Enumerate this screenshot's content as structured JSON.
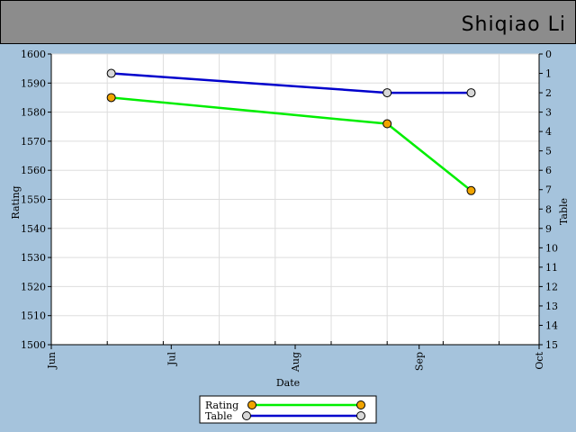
{
  "header": {
    "name": "Shiqiao Li"
  },
  "colors": {
    "rating": "#00ee00",
    "table": "#0000cc",
    "rating_marker": "#f0a400",
    "table_marker": "#d8d8d8",
    "header_bg": "#8c8c8c",
    "page_bg": "#a5c3dc"
  },
  "chart_data": {
    "type": "line",
    "xlabel": "Date",
    "ylabel": "Rating",
    "y2label": "Table",
    "x_ticks": [
      "Jun",
      "Jul",
      "Aug",
      "Sep",
      "Oct"
    ],
    "xlim": [
      "2010-06-01",
      "2010-10-01"
    ],
    "ylim": [
      1500,
      1600
    ],
    "y_ticks": [
      1500,
      1510,
      1520,
      1530,
      1540,
      1550,
      1560,
      1570,
      1580,
      1590,
      1600
    ],
    "y2lim": [
      15,
      0
    ],
    "y2_ticks": [
      0,
      1,
      2,
      3,
      4,
      5,
      6,
      7,
      8,
      9,
      10,
      11,
      12,
      13,
      14,
      15
    ],
    "grid": true,
    "legend_position": "bottom-center",
    "series": [
      {
        "name": "Rating",
        "axis": "left",
        "x": [
          "2010-06-16",
          "2010-08-24",
          "2010-09-14"
        ],
        "values": [
          1585,
          1576,
          1553
        ]
      },
      {
        "name": "Table",
        "axis": "right",
        "x": [
          "2010-06-16",
          "2010-08-24",
          "2010-09-14"
        ],
        "values": [
          1,
          2,
          2
        ]
      }
    ]
  }
}
